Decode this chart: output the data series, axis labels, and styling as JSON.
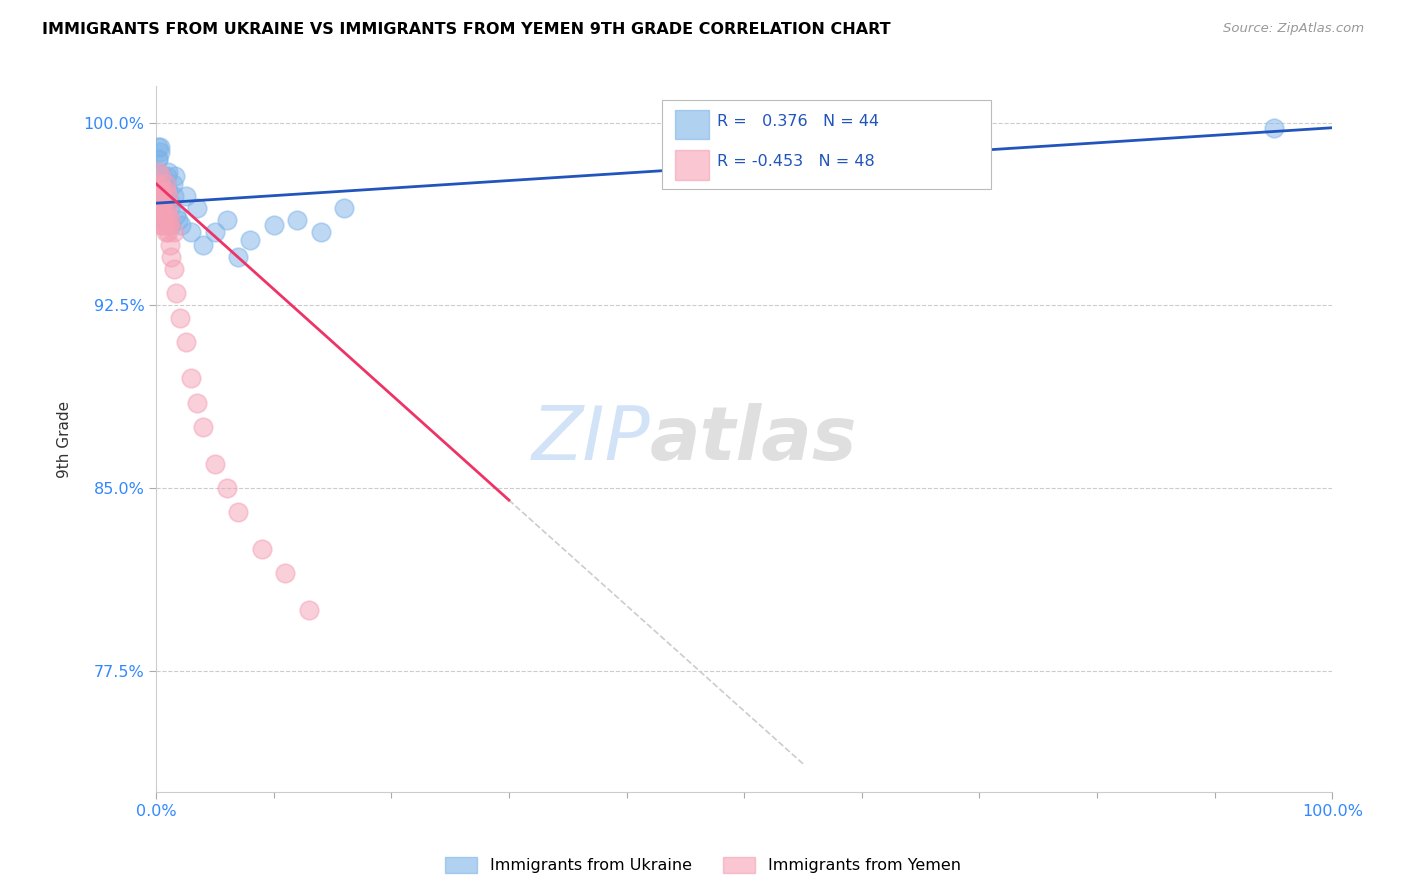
{
  "title": "IMMIGRANTS FROM UKRAINE VS IMMIGRANTS FROM YEMEN 9TH GRADE CORRELATION CHART",
  "source": "Source: ZipAtlas.com",
  "ylabel": "9th Grade",
  "xlim": [
    0.0,
    1.0
  ],
  "ylim": [
    0.725,
    1.015
  ],
  "xtick_labels": [
    "0.0%",
    "100.0%"
  ],
  "ytick_labels": [
    "77.5%",
    "85.0%",
    "92.5%",
    "100.0%"
  ],
  "ytick_vals": [
    0.775,
    0.85,
    0.925,
    1.0
  ],
  "ukraine_color": "#7EB3E8",
  "yemen_color": "#F5A0B5",
  "ukraine_R": 0.376,
  "ukraine_N": 44,
  "yemen_R": -0.453,
  "yemen_N": 48,
  "legend_ukraine": "Immigrants from Ukraine",
  "legend_yemen": "Immigrants from Yemen",
  "watermark_zip": "ZIP",
  "watermark_atlas": "atlas",
  "trendline_color_ukraine": "#2255BB",
  "trendline_color_yemen": "#EE3366",
  "trendline_extension_color": "#CCCCCC",
  "ukraine_scatter_x": [
    0.001,
    0.002,
    0.002,
    0.003,
    0.003,
    0.004,
    0.004,
    0.005,
    0.005,
    0.006,
    0.006,
    0.007,
    0.007,
    0.008,
    0.008,
    0.009,
    0.01,
    0.01,
    0.011,
    0.012,
    0.013,
    0.014,
    0.015,
    0.016,
    0.017,
    0.019,
    0.021,
    0.025,
    0.03,
    0.035,
    0.04,
    0.05,
    0.06,
    0.07,
    0.08,
    0.1,
    0.12,
    0.14,
    0.16,
    0.002,
    0.003,
    0.004,
    0.95,
    0.002
  ],
  "ukraine_scatter_y": [
    0.98,
    0.985,
    0.975,
    0.99,
    0.97,
    0.972,
    0.968,
    0.978,
    0.965,
    0.975,
    0.962,
    0.97,
    0.96,
    0.968,
    0.975,
    0.978,
    0.972,
    0.98,
    0.968,
    0.965,
    0.958,
    0.975,
    0.97,
    0.978,
    0.962,
    0.96,
    0.958,
    0.97,
    0.955,
    0.965,
    0.95,
    0.955,
    0.96,
    0.945,
    0.952,
    0.958,
    0.96,
    0.955,
    0.965,
    0.985,
    0.988,
    0.978,
    0.998,
    0.99
  ],
  "yemen_scatter_x": [
    0.001,
    0.001,
    0.002,
    0.002,
    0.003,
    0.003,
    0.003,
    0.004,
    0.004,
    0.004,
    0.005,
    0.005,
    0.006,
    0.006,
    0.007,
    0.007,
    0.008,
    0.008,
    0.009,
    0.01,
    0.01,
    0.011,
    0.012,
    0.013,
    0.015,
    0.017,
    0.02,
    0.025,
    0.03,
    0.035,
    0.04,
    0.05,
    0.06,
    0.07,
    0.09,
    0.11,
    0.13,
    0.002,
    0.003,
    0.004,
    0.005,
    0.006,
    0.007,
    0.008,
    0.009,
    0.01,
    0.012,
    0.015
  ],
  "yemen_scatter_y": [
    0.975,
    0.968,
    0.972,
    0.965,
    0.97,
    0.96,
    0.968,
    0.972,
    0.958,
    0.965,
    0.97,
    0.962,
    0.968,
    0.958,
    0.965,
    0.96,
    0.972,
    0.955,
    0.96,
    0.962,
    0.955,
    0.958,
    0.95,
    0.945,
    0.94,
    0.93,
    0.92,
    0.91,
    0.895,
    0.885,
    0.875,
    0.86,
    0.85,
    0.84,
    0.825,
    0.815,
    0.8,
    0.98,
    0.975,
    0.978,
    0.972,
    0.968,
    0.962,
    0.975,
    0.965,
    0.97,
    0.96,
    0.955
  ]
}
